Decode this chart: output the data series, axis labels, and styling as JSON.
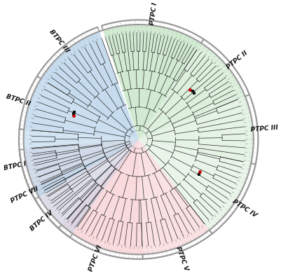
{
  "background_color": "#ffffff",
  "figure_size": [
    4.01,
    3.94
  ],
  "dpi": 100,
  "sectors": [
    {
      "name": "PTPC I",
      "t1": 60,
      "t2": 110,
      "color": "#b8ddb8",
      "alpha": 0.55
    },
    {
      "name": "PTPC II",
      "t1": 20,
      "t2": 60,
      "color": "#b8ddb8",
      "alpha": 0.4
    },
    {
      "name": "PTPC III",
      "t1": -15,
      "t2": 20,
      "color": "#b8ddb8",
      "alpha": 0.3
    },
    {
      "name": "PTPC IV",
      "t1": -55,
      "t2": -15,
      "color": "#b8ddb8",
      "alpha": 0.25
    },
    {
      "name": "PTPC V",
      "t1": -90,
      "t2": -55,
      "color": "#ffb3ba",
      "alpha": 0.4
    },
    {
      "name": "PTPC VI",
      "t1": -135,
      "t2": -90,
      "color": "#ffb3ba",
      "alpha": 0.5
    },
    {
      "name": "PTPC VII",
      "t1": -175,
      "t2": -135,
      "color": "#ffb3ba",
      "alpha": 0.3
    },
    {
      "name": "BTPC I",
      "t1": 155,
      "t2": 185,
      "color": "#b3d4f5",
      "alpha": 0.55
    },
    {
      "name": "BTPC II",
      "t1": 135,
      "t2": 155,
      "color": "#b3d4f5",
      "alpha": 0.65
    },
    {
      "name": "BTPC III",
      "t1": 110,
      "t2": 135,
      "color": "#b3d4f5",
      "alpha": 0.7
    },
    {
      "name": "BTPC IV",
      "t1": 175,
      "t2": 205,
      "color": "#b3d4f5",
      "alpha": 0.35
    }
  ],
  "arc_color": "#999999",
  "arc_linewidth": 1.5,
  "tree_color": "#2a2a2a",
  "tree_linewidth": 0.5,
  "red_dot_color": "#cc0000",
  "black_dot_color": "#111111",
  "dot_size": 3.5
}
